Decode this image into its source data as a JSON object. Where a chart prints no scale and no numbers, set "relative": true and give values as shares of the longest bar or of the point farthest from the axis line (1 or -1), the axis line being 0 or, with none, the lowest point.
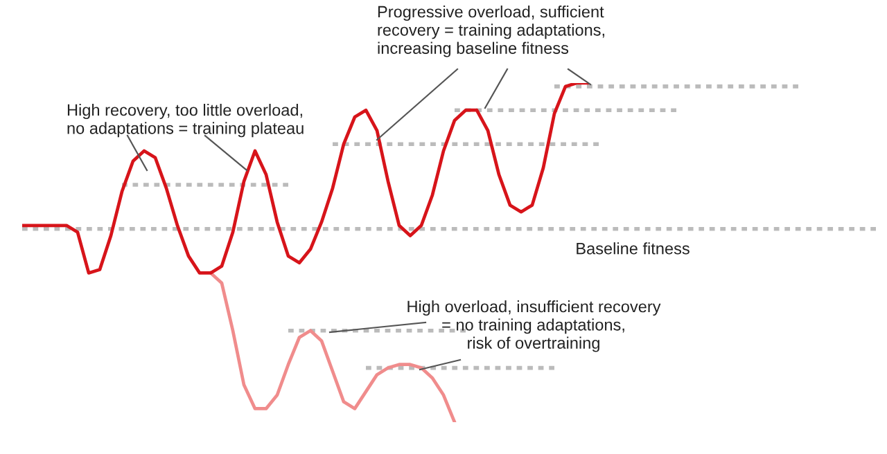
{
  "chart_data": {
    "type": "line",
    "relative": true,
    "line_style": "solid",
    "categories": [
      null,
      null,
      null,
      null,
      null,
      null,
      null,
      null,
      null,
      null,
      null,
      null,
      null,
      null,
      null,
      null,
      null,
      null,
      null,
      null,
      null,
      null,
      null,
      null,
      null,
      null,
      null,
      null,
      null,
      null,
      null,
      null,
      null,
      null,
      null,
      null,
      null,
      null,
      null,
      null,
      null,
      null,
      null,
      null,
      null,
      null,
      null,
      null,
      null,
      null,
      null,
      null,
      null,
      null,
      null,
      null,
      null,
      null,
      null,
      null,
      null,
      null,
      null,
      null,
      null,
      null,
      null,
      null,
      null,
      null,
      null,
      null,
      null,
      null,
      null,
      null,
      null,
      null
    ],
    "series": [
      {
        "color": "#bbbbbb",
        "line_style": "dotted",
        "values": [
          null,
          null,
          null,
          null,
          null,
          null,
          null,
          null,
          null,
          0.7,
          0.7,
          0.7,
          0.7,
          0.7,
          0.7,
          0.7,
          0.7,
          0.7,
          0.7,
          0.7,
          0.7,
          0.7,
          0.7,
          0.7,
          0.7,
          null,
          null,
          null,
          null,
          null,
          null,
          null,
          null,
          null,
          null,
          null,
          null,
          null,
          null,
          null,
          null,
          null,
          null,
          null,
          null,
          null,
          null,
          null,
          null,
          null,
          null,
          null,
          null,
          null,
          null,
          null,
          null,
          null,
          null,
          null,
          null,
          null,
          null,
          null,
          null,
          null,
          null,
          null,
          null,
          null,
          null,
          null,
          null,
          null,
          null,
          null,
          null,
          null
        ]
      },
      {
        "color": "#bbbbbb",
        "line_style": "dotted",
        "values": [
          null,
          null,
          null,
          null,
          null,
          null,
          null,
          null,
          null,
          null,
          null,
          null,
          null,
          null,
          null,
          null,
          null,
          null,
          null,
          null,
          null,
          null,
          null,
          null,
          null,
          null,
          null,
          null,
          0.82,
          0.82,
          0.82,
          0.82,
          0.82,
          0.82,
          0.82,
          0.82,
          0.82,
          0.82,
          0.82,
          0.82,
          0.82,
          0.82,
          0.82,
          0.82,
          0.82,
          0.82,
          0.82,
          0.82,
          0.82,
          0.82,
          0.82,
          0.82,
          0.82,
          null,
          null,
          null,
          null,
          null,
          null,
          null,
          null,
          null,
          null,
          null,
          null,
          null,
          null,
          null,
          null,
          null,
          null,
          null,
          null,
          null,
          null,
          null,
          null,
          null
        ]
      },
      {
        "color": "#bbbbbb",
        "line_style": "dotted",
        "values": [
          null,
          null,
          null,
          null,
          null,
          null,
          null,
          null,
          null,
          null,
          null,
          null,
          null,
          null,
          null,
          null,
          null,
          null,
          null,
          null,
          null,
          null,
          null,
          null,
          null,
          null,
          null,
          null,
          null,
          null,
          null,
          null,
          null,
          null,
          null,
          null,
          null,
          null,
          null,
          0.92,
          0.92,
          0.92,
          0.92,
          0.92,
          0.92,
          0.92,
          0.92,
          0.92,
          0.92,
          0.92,
          0.92,
          0.92,
          0.92,
          0.92,
          0.92,
          0.92,
          0.92,
          0.92,
          0.92,
          0.92,
          null,
          null,
          null,
          null,
          null,
          null,
          null,
          null,
          null,
          null,
          null,
          null,
          null,
          null,
          null,
          null,
          null,
          null
        ]
      },
      {
        "color": "#bbbbbb",
        "line_style": "dotted",
        "values": [
          null,
          null,
          null,
          null,
          null,
          null,
          null,
          null,
          null,
          null,
          null,
          null,
          null,
          null,
          null,
          null,
          null,
          null,
          null,
          null,
          null,
          null,
          null,
          null,
          null,
          null,
          null,
          null,
          null,
          null,
          null,
          null,
          null,
          null,
          null,
          null,
          null,
          null,
          null,
          null,
          null,
          null,
          null,
          null,
          null,
          null,
          null,
          null,
          0.99,
          0.99,
          0.99,
          0.99,
          0.99,
          0.99,
          0.99,
          0.99,
          0.99,
          0.99,
          0.99,
          0.99,
          0.99,
          0.99,
          0.99,
          0.99,
          0.99,
          0.99,
          0.99,
          0.99,
          0.99,
          0.99,
          0.99,
          null,
          null,
          null,
          null,
          null,
          null,
          null
        ]
      },
      {
        "color": "#bbbbbb",
        "line_style": "dotted",
        "values": [
          null,
          null,
          null,
          null,
          null,
          null,
          null,
          null,
          null,
          null,
          null,
          null,
          null,
          null,
          null,
          null,
          null,
          null,
          null,
          null,
          null,
          null,
          null,
          null,
          0.27,
          0.27,
          0.27,
          0.27,
          0.27,
          0.27,
          0.27,
          0.27,
          0.27,
          0.27,
          0.27,
          0.27,
          0.27,
          0.27,
          0.27,
          0.27,
          0.27,
          null,
          null,
          null,
          null,
          null,
          null,
          null,
          null,
          null,
          null,
          null,
          null,
          null,
          null,
          null,
          null,
          null,
          null,
          null,
          null,
          null,
          null,
          null,
          null,
          null,
          null,
          null,
          null,
          null,
          null,
          null,
          null,
          null,
          null,
          null,
          null,
          null
        ]
      },
      {
        "color": "#bbbbbb",
        "line_style": "dotted",
        "values": [
          null,
          null,
          null,
          null,
          null,
          null,
          null,
          null,
          null,
          null,
          null,
          null,
          null,
          null,
          null,
          null,
          null,
          null,
          null,
          null,
          null,
          null,
          null,
          null,
          null,
          null,
          null,
          null,
          null,
          null,
          null,
          0.16,
          0.16,
          0.16,
          0.16,
          0.16,
          0.16,
          0.16,
          0.16,
          0.16,
          0.16,
          0.16,
          0.16,
          0.16,
          0.16,
          0.16,
          0.16,
          0.16,
          0.16,
          null,
          null,
          null,
          null,
          null,
          null,
          null,
          null,
          null,
          null,
          null,
          null,
          null,
          null,
          null,
          null,
          null,
          null,
          null,
          null,
          null,
          null,
          null,
          null,
          null,
          null,
          null,
          null,
          null
        ]
      },
      {
        "color": "#f08c8c",
        "values": [
          null,
          null,
          null,
          null,
          null,
          null,
          null,
          null,
          null,
          null,
          null,
          null,
          null,
          null,
          null,
          null,
          null,
          0.44,
          0.41,
          0.27,
          0.11,
          0.04,
          0.04,
          0.08,
          0.17,
          0.25,
          0.27,
          0.24,
          0.15,
          0.06,
          0.04,
          0.09,
          0.14,
          0.16,
          0.17,
          0.17,
          0.16,
          0.13,
          0.08,
          0.0,
          null,
          null,
          null,
          null,
          null,
          null,
          null,
          null,
          null,
          null,
          null,
          null,
          null,
          null,
          null,
          null,
          null,
          null,
          null,
          null,
          null,
          null,
          null,
          null,
          null,
          null,
          null,
          null,
          null,
          null,
          null,
          null,
          null,
          null,
          null,
          null,
          null,
          null
        ]
      },
      {
        "color": "#d7141a",
        "values": [
          0.58,
          0.58,
          0.58,
          0.58,
          0.58,
          0.56,
          0.44,
          0.45,
          0.55,
          0.68,
          0.77,
          0.8,
          0.78,
          0.69,
          0.58,
          0.49,
          0.44,
          0.44,
          0.46,
          0.56,
          0.71,
          0.8,
          0.73,
          0.59,
          0.49,
          0.47,
          0.51,
          0.59,
          0.69,
          0.82,
          0.9,
          0.92,
          0.86,
          0.71,
          0.58,
          0.55,
          0.58,
          0.67,
          0.8,
          0.89,
          0.92,
          0.92,
          0.86,
          0.73,
          0.64,
          0.62,
          0.64,
          0.75,
          0.91,
          0.99,
          1.0,
          1.0,
          null,
          null,
          null,
          null,
          null,
          null,
          null,
          null,
          null,
          null,
          null,
          null,
          null,
          null,
          null,
          null,
          null,
          null,
          null,
          null,
          null,
          null,
          null,
          null,
          null,
          null
        ]
      }
    ],
    "ref_lines": [
      {
        "axis": "y",
        "value": 0.57,
        "label": "Baseline fitness",
        "color": "#bbbbbb",
        "line_style": "dotted"
      }
    ],
    "annotations": [
      "High recovery, too little overload,\nno adaptations = training plateau",
      "Progressive overload, sufficient\nrecovery = training adaptations,\nincreasing baseline fitness",
      "High overload, insufficient recovery\n= no training adaptations,\nrisk of overtraining"
    ]
  }
}
